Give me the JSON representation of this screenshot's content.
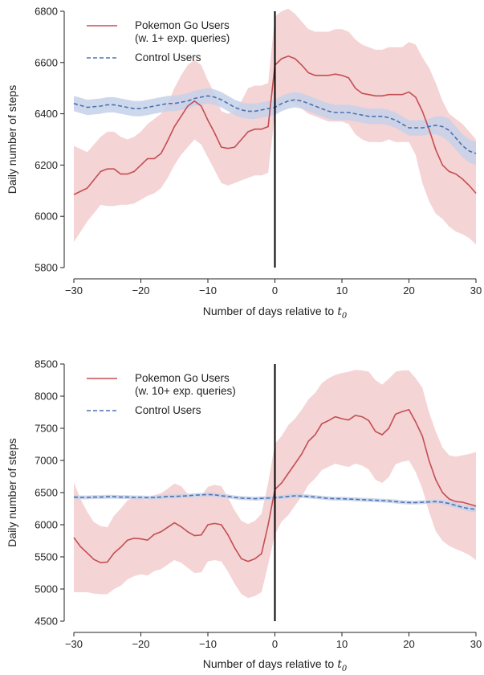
{
  "colors": {
    "pokemon_line": "#c44e52",
    "pokemon_band": "#f0c5c7",
    "control_line": "#4c72b0",
    "control_band": "#c6d1ea",
    "event_line": "#000000",
    "axis": "#222222"
  },
  "chart_data": [
    {
      "type": "line",
      "title": "",
      "xlabel": "Number of days relative to",
      "xlabel_symbol": "t",
      "xlabel_subscript": "0",
      "ylabel": "Daily number of steps",
      "xlim": [
        -30,
        30
      ],
      "ylim": [
        5800,
        6800
      ],
      "x_ticks": [
        -30,
        -20,
        -10,
        0,
        10,
        20,
        30
      ],
      "x_tick_labels": [
        "−30",
        "−20",
        "−10",
        "0",
        "10",
        "20",
        "30"
      ],
      "y_ticks": [
        5800,
        6000,
        6200,
        6400,
        6600,
        6800
      ],
      "y_tick_labels": [
        "5800",
        "6000",
        "6200",
        "6400",
        "6600",
        "6800"
      ],
      "vline_x": 0,
      "legend_position": "top-left",
      "x": [
        -30,
        -28,
        -26,
        -25,
        -24,
        -23,
        -22,
        -21,
        -20,
        -19,
        -18,
        -17,
        -16,
        -15,
        -14,
        -13,
        -12,
        -11,
        -10,
        -9,
        -8,
        -7,
        -6,
        -5,
        -4,
        -3,
        -2,
        -1,
        0,
        1,
        2,
        3,
        4,
        5,
        6,
        7,
        8,
        9,
        10,
        11,
        12,
        13,
        14,
        15,
        16,
        17,
        18,
        19,
        20,
        21,
        22,
        23,
        24,
        25,
        26,
        27,
        28,
        29,
        30
      ],
      "series": [
        {
          "name": "Pokemon Go Users",
          "legend_lines": [
            "Pokemon Go Users",
            "(w. 1+ exp. queries)"
          ],
          "style": "solid",
          "values": [
            6085,
            6110,
            6175,
            6185,
            6185,
            6165,
            6165,
            6175,
            6200,
            6225,
            6225,
            6245,
            6295,
            6350,
            6390,
            6430,
            6450,
            6430,
            6375,
            6325,
            6270,
            6265,
            6270,
            6300,
            6330,
            6340,
            6340,
            6350,
            6590,
            6615,
            6625,
            6615,
            6590,
            6560,
            6550,
            6550,
            6550,
            6555,
            6550,
            6540,
            6500,
            6480,
            6475,
            6470,
            6470,
            6475,
            6475,
            6475,
            6485,
            6465,
            6410,
            6340,
            6260,
            6200,
            6175,
            6165,
            6145,
            6120,
            6090
          ],
          "lower": [
            5900,
            5980,
            6045,
            6040,
            6040,
            6045,
            6045,
            6050,
            6065,
            6080,
            6090,
            6110,
            6150,
            6200,
            6240,
            6270,
            6300,
            6280,
            6230,
            6180,
            6130,
            6120,
            6130,
            6140,
            6150,
            6160,
            6160,
            6170,
            6400,
            6430,
            6450,
            6440,
            6420,
            6400,
            6390,
            6380,
            6370,
            6370,
            6370,
            6360,
            6320,
            6300,
            6290,
            6290,
            6290,
            6300,
            6290,
            6290,
            6290,
            6240,
            6130,
            6060,
            6010,
            5990,
            5960,
            5940,
            5930,
            5915,
            5890
          ],
          "upper": [
            6275,
            6250,
            6310,
            6330,
            6330,
            6310,
            6300,
            6310,
            6330,
            6360,
            6380,
            6400,
            6440,
            6500,
            6550,
            6590,
            6610,
            6590,
            6530,
            6480,
            6410,
            6400,
            6410,
            6450,
            6500,
            6510,
            6510,
            6520,
            6780,
            6800,
            6810,
            6790,
            6760,
            6730,
            6720,
            6720,
            6720,
            6730,
            6730,
            6720,
            6690,
            6670,
            6660,
            6650,
            6650,
            6660,
            6660,
            6660,
            6680,
            6670,
            6620,
            6580,
            6520,
            6450,
            6400,
            6380,
            6360,
            6330,
            6300
          ]
        },
        {
          "name": "Control Users",
          "legend_lines": [
            "Control Users"
          ],
          "style": "dashed",
          "values": [
            6440,
            6425,
            6430,
            6435,
            6435,
            6430,
            6425,
            6420,
            6420,
            6425,
            6430,
            6435,
            6440,
            6440,
            6445,
            6450,
            6460,
            6465,
            6470,
            6465,
            6455,
            6440,
            6425,
            6415,
            6410,
            6410,
            6415,
            6420,
            6425,
            6440,
            6450,
            6455,
            6450,
            6440,
            6430,
            6420,
            6410,
            6405,
            6405,
            6405,
            6400,
            6395,
            6390,
            6390,
            6390,
            6385,
            6375,
            6360,
            6345,
            6345,
            6345,
            6350,
            6355,
            6350,
            6335,
            6305,
            6275,
            6255,
            6245
          ],
          "lower": [
            6410,
            6395,
            6400,
            6405,
            6405,
            6400,
            6395,
            6390,
            6390,
            6395,
            6400,
            6405,
            6410,
            6410,
            6415,
            6420,
            6430,
            6435,
            6440,
            6435,
            6425,
            6410,
            6395,
            6385,
            6380,
            6380,
            6385,
            6390,
            6395,
            6410,
            6420,
            6425,
            6420,
            6410,
            6400,
            6390,
            6380,
            6375,
            6375,
            6375,
            6370,
            6365,
            6360,
            6360,
            6360,
            6355,
            6345,
            6330,
            6315,
            6315,
            6315,
            6320,
            6320,
            6310,
            6290,
            6260,
            6230,
            6210,
            6200
          ],
          "upper": [
            6470,
            6455,
            6460,
            6465,
            6465,
            6460,
            6455,
            6450,
            6450,
            6455,
            6460,
            6465,
            6470,
            6470,
            6475,
            6480,
            6490,
            6495,
            6500,
            6495,
            6485,
            6470,
            6455,
            6445,
            6440,
            6440,
            6445,
            6450,
            6455,
            6470,
            6480,
            6485,
            6480,
            6470,
            6460,
            6450,
            6440,
            6435,
            6435,
            6435,
            6430,
            6425,
            6420,
            6420,
            6420,
            6415,
            6405,
            6390,
            6375,
            6375,
            6375,
            6380,
            6390,
            6390,
            6380,
            6350,
            6320,
            6300,
            6290
          ]
        }
      ]
    },
    {
      "type": "line",
      "title": "",
      "xlabel": "Number of days relative to",
      "xlabel_symbol": "t",
      "xlabel_subscript": "0",
      "ylabel": "Daily number of steps",
      "xlim": [
        -30,
        30
      ],
      "ylim": [
        4500,
        8500
      ],
      "x_ticks": [
        -30,
        -20,
        -10,
        0,
        10,
        20,
        30
      ],
      "x_tick_labels": [
        "−30",
        "−20",
        "−10",
        "0",
        "10",
        "20",
        "30"
      ],
      "y_ticks": [
        4500,
        5000,
        5500,
        6000,
        6500,
        7000,
        7500,
        8000,
        8500
      ],
      "y_tick_labels": [
        "4500",
        "5000",
        "5500",
        "6000",
        "6500",
        "7000",
        "7500",
        "8000",
        "8500"
      ],
      "vline_x": 0,
      "legend_position": "top-left",
      "x": [
        -30,
        -29,
        -28,
        -27,
        -26,
        -25,
        -24,
        -23,
        -22,
        -21,
        -20,
        -19,
        -18,
        -17,
        -16,
        -15,
        -14,
        -13,
        -12,
        -11,
        -10,
        -9,
        -8,
        -7,
        -6,
        -5,
        -4,
        -3,
        -2,
        -1,
        0,
        1,
        2,
        3,
        4,
        5,
        6,
        7,
        8,
        9,
        10,
        11,
        12,
        13,
        14,
        15,
        16,
        17,
        18,
        19,
        20,
        21,
        22,
        23,
        24,
        25,
        26,
        27,
        28,
        29,
        30
      ],
      "series": [
        {
          "name": "Pokemon Go Users",
          "legend_lines": [
            "Pokemon Go Users",
            "(w. 10+ exp. queries)"
          ],
          "style": "solid",
          "values": [
            5800,
            5660,
            5560,
            5460,
            5410,
            5420,
            5560,
            5650,
            5760,
            5790,
            5780,
            5760,
            5850,
            5890,
            5960,
            6030,
            5970,
            5890,
            5830,
            5840,
            6000,
            6020,
            6000,
            5840,
            5640,
            5470,
            5430,
            5470,
            5550,
            6000,
            6550,
            6650,
            6800,
            6950,
            7100,
            7300,
            7400,
            7570,
            7620,
            7680,
            7650,
            7630,
            7700,
            7680,
            7620,
            7450,
            7400,
            7500,
            7720,
            7760,
            7790,
            7600,
            7380,
            7000,
            6700,
            6500,
            6400,
            6360,
            6350,
            6320,
            6290
          ],
          "lower": [
            4950,
            4950,
            4950,
            4930,
            4920,
            4920,
            5000,
            5050,
            5150,
            5200,
            5230,
            5210,
            5280,
            5310,
            5380,
            5450,
            5410,
            5330,
            5250,
            5260,
            5430,
            5450,
            5430,
            5270,
            5080,
            4920,
            4860,
            4890,
            4950,
            5380,
            5850,
            6050,
            6150,
            6300,
            6440,
            6620,
            6720,
            6850,
            6900,
            6950,
            6920,
            6900,
            6950,
            6920,
            6860,
            6700,
            6650,
            6740,
            6940,
            6980,
            7000,
            6820,
            6560,
            6200,
            5900,
            5750,
            5670,
            5620,
            5580,
            5530,
            5450
          ],
          "upper": [
            6660,
            6400,
            6200,
            6040,
            5980,
            5960,
            6140,
            6250,
            6380,
            6420,
            6400,
            6380,
            6460,
            6490,
            6560,
            6640,
            6600,
            6480,
            6430,
            6450,
            6590,
            6620,
            6600,
            6420,
            6220,
            6060,
            6010,
            6060,
            6170,
            6650,
            7260,
            7380,
            7550,
            7650,
            7790,
            7950,
            8050,
            8200,
            8280,
            8330,
            8360,
            8380,
            8410,
            8400,
            8380,
            8250,
            8180,
            8270,
            8380,
            8400,
            8400,
            8280,
            8130,
            7750,
            7450,
            7200,
            7080,
            7060,
            7080,
            7100,
            7130
          ]
        },
        {
          "name": "Control Users",
          "legend_lines": [
            "Control Users"
          ],
          "style": "dashed",
          "values": [
            6430,
            6425,
            6425,
            6430,
            6430,
            6435,
            6435,
            6430,
            6430,
            6425,
            6425,
            6420,
            6425,
            6430,
            6440,
            6440,
            6445,
            6450,
            6460,
            6465,
            6470,
            6465,
            6450,
            6440,
            6425,
            6415,
            6410,
            6405,
            6410,
            6415,
            6420,
            6430,
            6440,
            6450,
            6445,
            6440,
            6430,
            6420,
            6410,
            6405,
            6405,
            6400,
            6395,
            6390,
            6385,
            6380,
            6375,
            6370,
            6360,
            6350,
            6345,
            6345,
            6350,
            6355,
            6360,
            6350,
            6330,
            6300,
            6270,
            6250,
            6240
          ],
          "lower": [
            6400,
            6395,
            6395,
            6400,
            6400,
            6405,
            6405,
            6400,
            6400,
            6395,
            6395,
            6390,
            6395,
            6400,
            6410,
            6410,
            6415,
            6420,
            6430,
            6435,
            6440,
            6435,
            6420,
            6410,
            6395,
            6385,
            6380,
            6375,
            6380,
            6385,
            6390,
            6400,
            6410,
            6420,
            6415,
            6410,
            6400,
            6390,
            6380,
            6375,
            6375,
            6370,
            6365,
            6360,
            6355,
            6350,
            6345,
            6340,
            6330,
            6320,
            6315,
            6315,
            6320,
            6325,
            6330,
            6315,
            6290,
            6260,
            6230,
            6205,
            6195
          ],
          "upper": [
            6460,
            6455,
            6455,
            6460,
            6460,
            6465,
            6465,
            6460,
            6460,
            6455,
            6455,
            6450,
            6455,
            6460,
            6470,
            6470,
            6475,
            6480,
            6490,
            6495,
            6500,
            6495,
            6480,
            6470,
            6455,
            6445,
            6440,
            6435,
            6440,
            6445,
            6450,
            6460,
            6470,
            6480,
            6475,
            6470,
            6460,
            6450,
            6440,
            6435,
            6435,
            6430,
            6425,
            6420,
            6415,
            6410,
            6405,
            6400,
            6390,
            6380,
            6375,
            6375,
            6380,
            6385,
            6390,
            6385,
            6370,
            6340,
            6310,
            6295,
            6285
          ]
        }
      ]
    }
  ]
}
